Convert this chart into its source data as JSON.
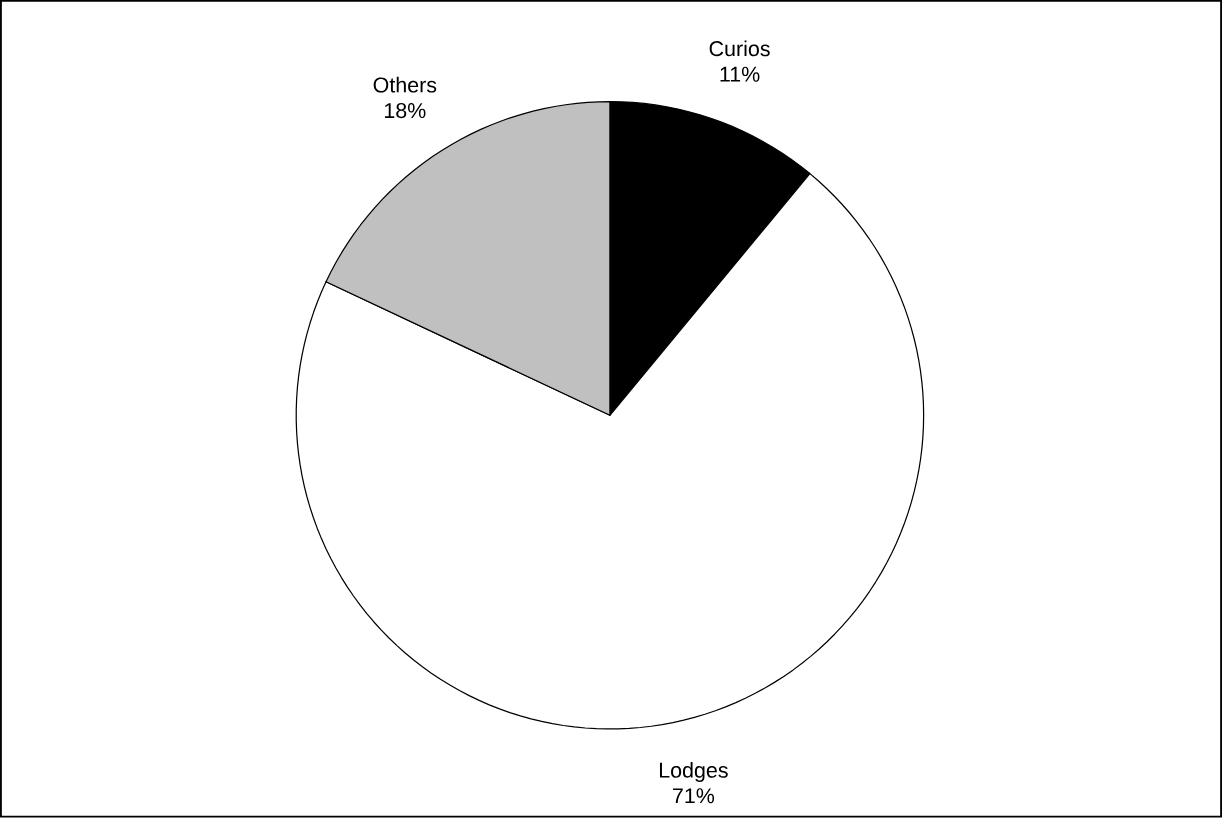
{
  "chart_data": {
    "type": "pie",
    "categories": [
      "Curios",
      "Lodges",
      "Others"
    ],
    "values": [
      11,
      71,
      18
    ],
    "value_labels": [
      "11%",
      "71%",
      "18%"
    ],
    "colors": [
      "#000000",
      "#ffffff",
      "#c0c0c0"
    ]
  }
}
